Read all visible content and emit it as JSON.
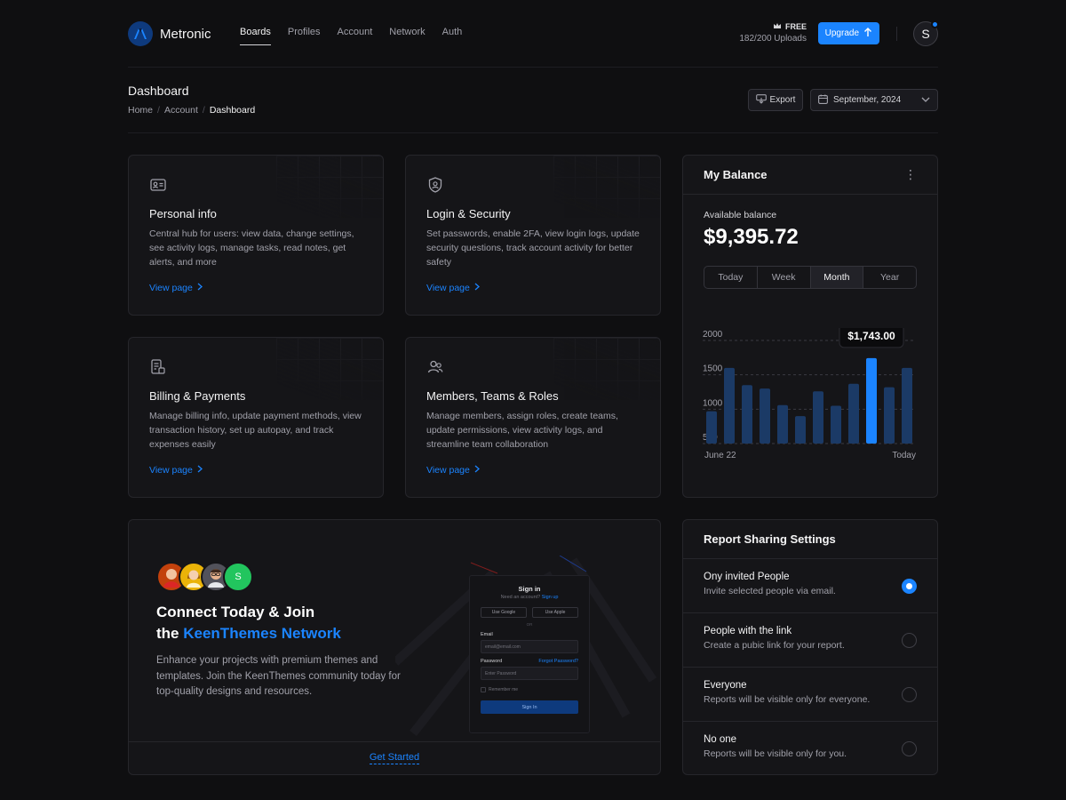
{
  "header": {
    "app_name": "Metronic",
    "nav": [
      "Boards",
      "Profiles",
      "Account",
      "Network",
      "Auth"
    ],
    "active_nav": "Boards",
    "plan_badge": "FREE",
    "plan_usage": "182/200 Uploads",
    "upgrade_label": "Upgrade",
    "avatar_letter": "S"
  },
  "toolbar": {
    "title": "Dashboard",
    "breadcrumb": [
      "Home",
      "Account",
      "Dashboard"
    ],
    "export_label": "Export",
    "date_label": "September, 2024"
  },
  "features": [
    {
      "title": "Personal info",
      "desc": "Central hub for users: view data, change settings, see activity logs, manage tasks, read notes, get alerts, and more",
      "link": "View page",
      "icon": "id-card-icon"
    },
    {
      "title": "Login & Security",
      "desc": "Set passwords, enable 2FA, view login logs, update security questions, track account activity for better safety",
      "link": "View page",
      "icon": "shield-user-icon"
    },
    {
      "title": "Billing & Payments",
      "desc": "Manage billing info, update payment methods, view transaction history, set up autopay, and track expenses easily",
      "link": "View page",
      "icon": "bill-icon"
    },
    {
      "title": "Members, Teams & Roles",
      "desc": "Manage members, assign roles, create teams, update permissions, view activity logs, and streamline team collaboration",
      "link": "View page",
      "icon": "users-icon"
    }
  ],
  "balance": {
    "title": "My Balance",
    "label": "Available balance",
    "amount": "$9,395.72",
    "periods": [
      "Today",
      "Week",
      "Month",
      "Year"
    ],
    "active_period": "Month"
  },
  "chart_data": {
    "type": "bar",
    "y_ticks": [
      "2000",
      "1500",
      "1000",
      "500"
    ],
    "ylim": [
      500,
      2000
    ],
    "values": [
      970,
      1600,
      1350,
      1300,
      1060,
      900,
      1260,
      1050,
      1370,
      1743,
      1320,
      1600
    ],
    "highlight_index": 9,
    "tooltip": "$1,743.00",
    "x_start_label": "June 22",
    "x_end_label": "Today",
    "bar_color": "#1b3a66",
    "highlight_color": "#1b84ff"
  },
  "connect": {
    "avatar_letter": "S",
    "title_line1": "Connect Today & Join",
    "title_prefix": "the ",
    "title_accent": "KeenThemes Network",
    "desc": "Enhance your projects with premium themes and templates. Join the KeenThemes community today for top-quality designs and resources.",
    "cta": "Get Started",
    "mock": {
      "title": "Sign in",
      "subtitle": "Need an account?",
      "signup": "Sign up",
      "google": "Use Google",
      "apple": "Use Apple",
      "or": "OR",
      "email_label": "Email",
      "email_placeholder": "email@email.com",
      "password_label": "Password",
      "forgot": "Forgot Password?",
      "password_placeholder": "Enter Password",
      "remember": "Remember me",
      "submit": "Sign In"
    }
  },
  "report": {
    "title": "Report Sharing Settings",
    "options": [
      {
        "title": "Ony invited People",
        "desc": "Invite selected people via email.",
        "selected": true
      },
      {
        "title": "People with the link",
        "desc": "Create a pubic link for your report.",
        "selected": false
      },
      {
        "title": "Everyone",
        "desc": "Reports will be visible only for everyone.",
        "selected": false
      },
      {
        "title": "No one",
        "desc": "Reports will be visible only for you.",
        "selected": false
      }
    ]
  }
}
